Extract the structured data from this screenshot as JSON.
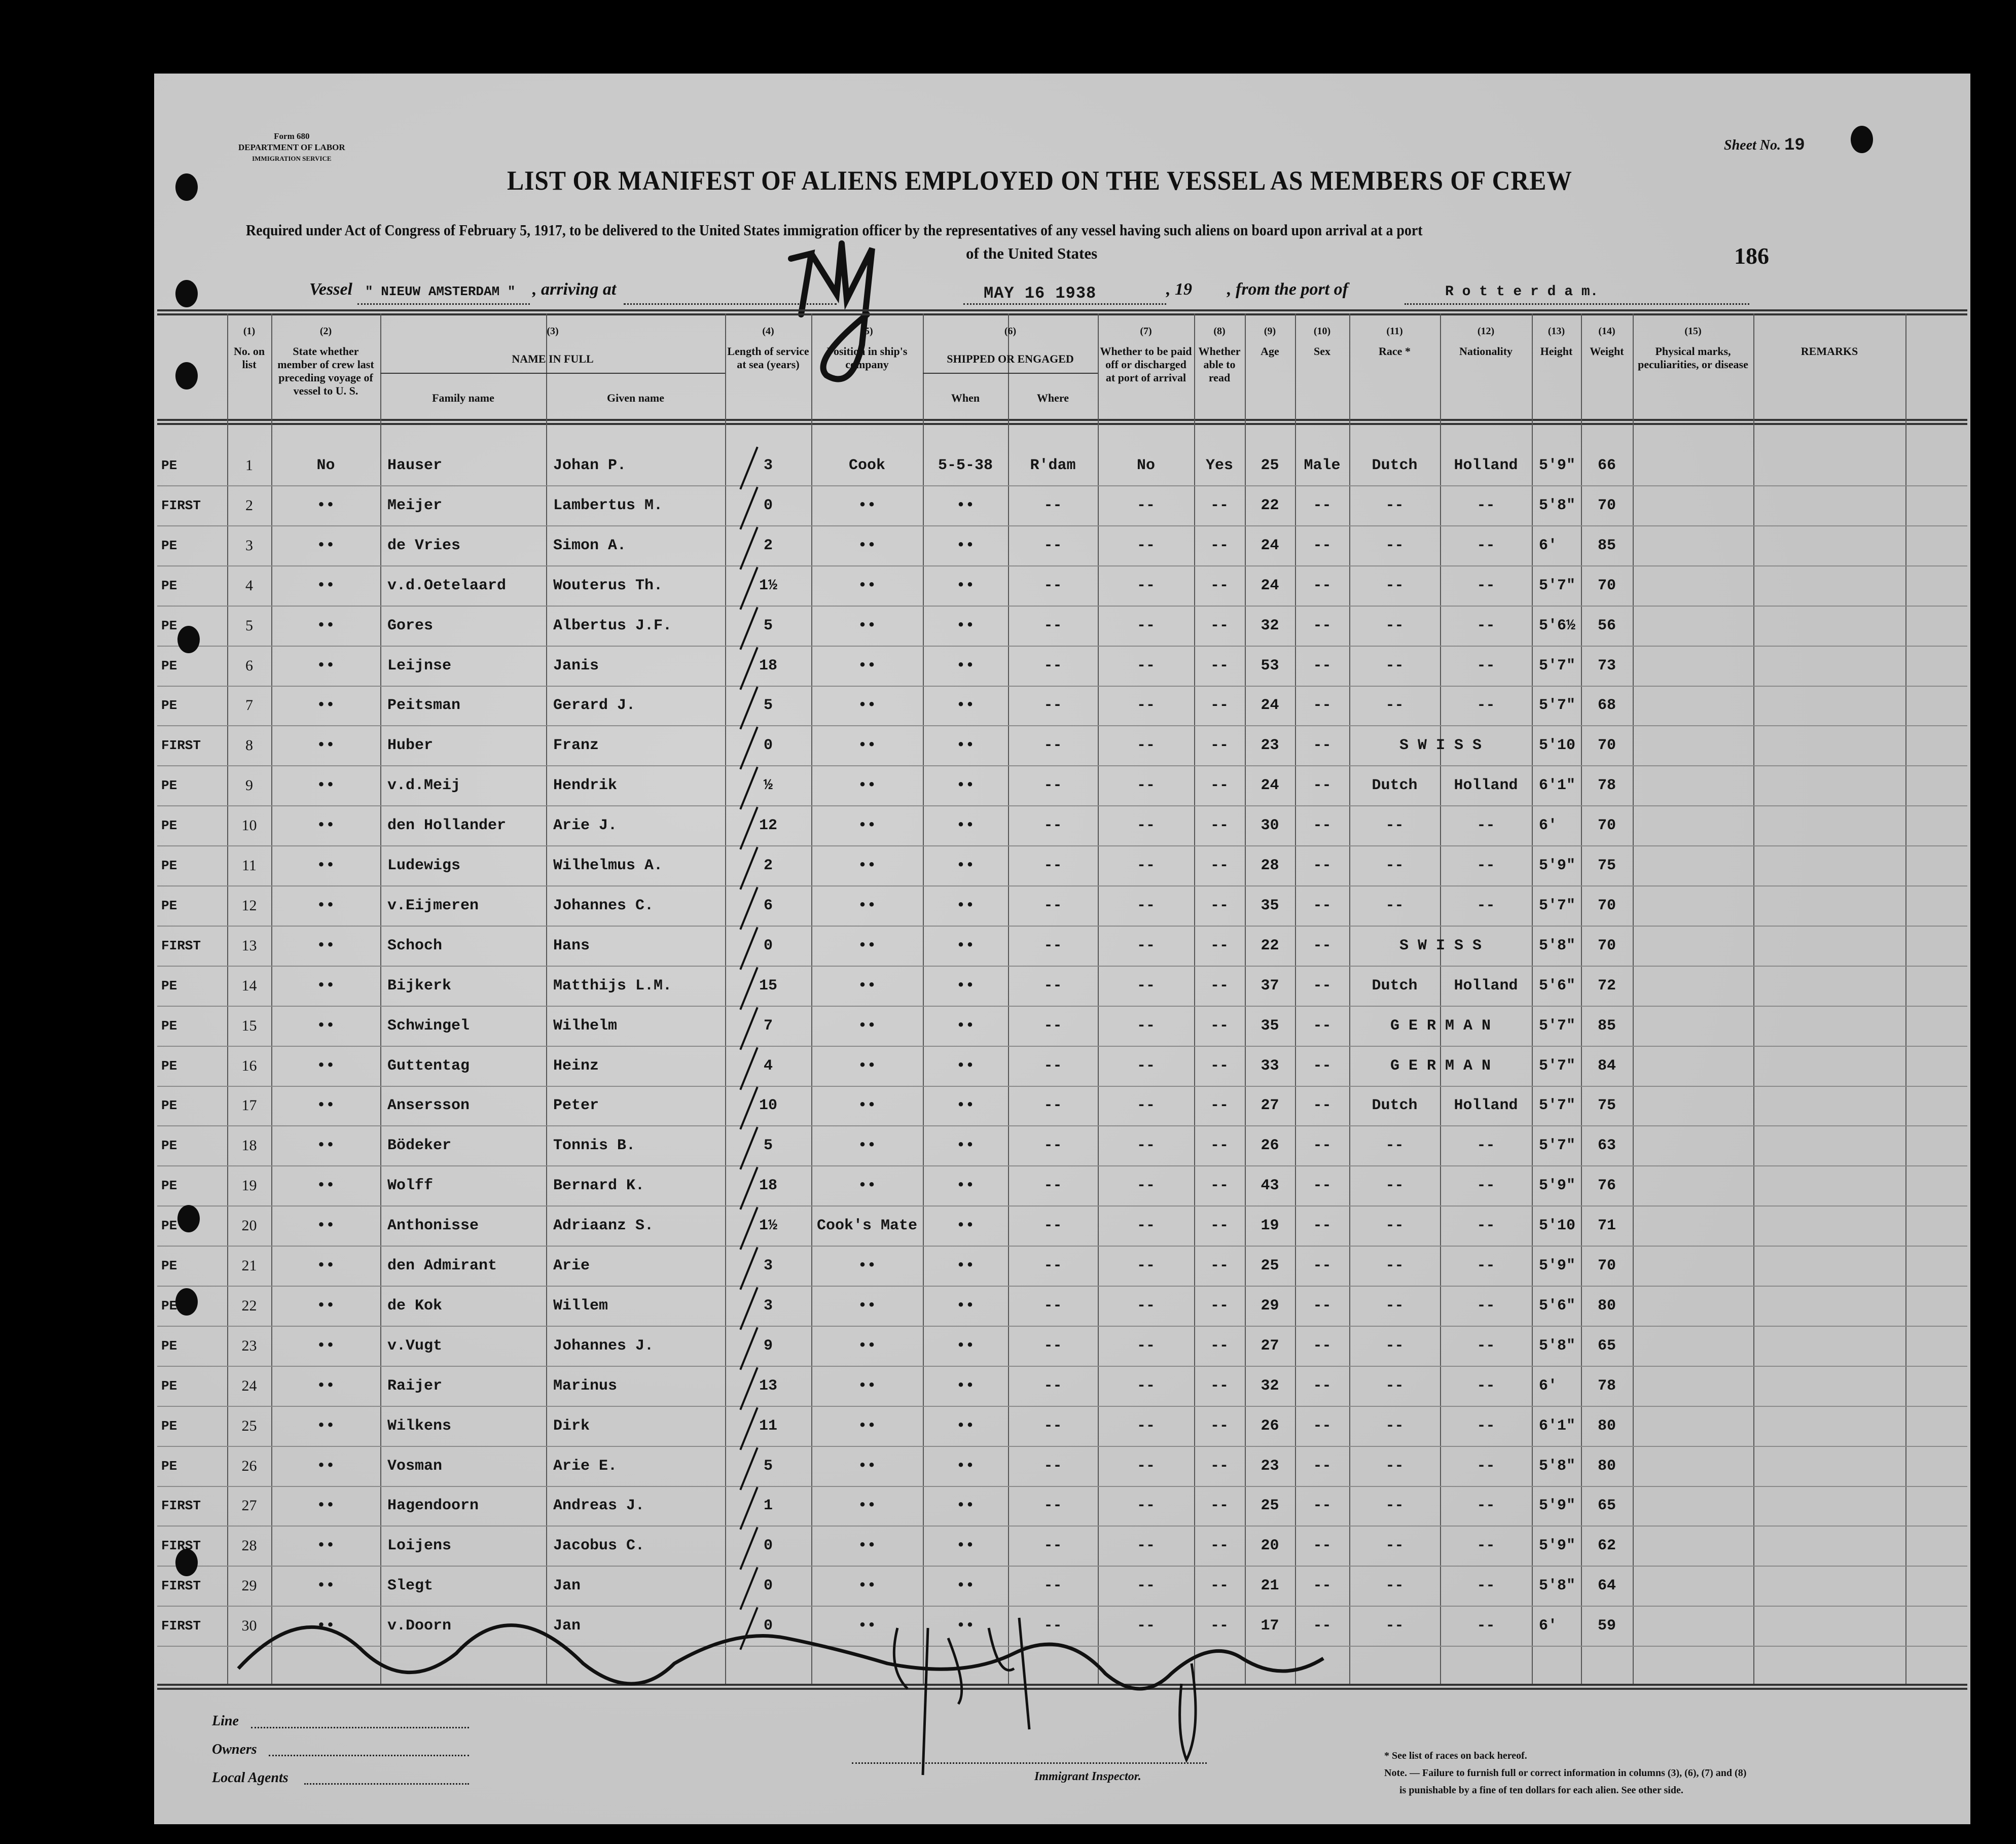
{
  "form_stamp": {
    "form": "Form 680",
    "department": "DEPARTMENT OF LABOR",
    "service": "IMMIGRATION SERVICE"
  },
  "sheet": {
    "label": "Sheet No.",
    "number": "19"
  },
  "stamp_number": "186",
  "title": "LIST OR MANIFEST OF ALIENS EMPLOYED ON THE VESSEL AS MEMBERS OF CREW",
  "subtitle_line1": "Required under Act of Congress of February 5, 1917, to be delivered to the United States immigration officer by the representatives of any vessel having such aliens on board upon arrival at a port",
  "subtitle_line2": "of the United States",
  "vessel_line": {
    "vessel_label": "Vessel",
    "vessel_name": "\" NIEUW AMSTERDAM \"",
    "arriving_label": ", arriving at",
    "arrival_port_handwritten": "NY",
    "date_stamp": "MAY 16 1938",
    "year_label": ", 19",
    "from_label": ", from the port of",
    "from_port": "R o t t e r d a m."
  },
  "columns": [
    {
      "num": "(1)",
      "label": "No. on list"
    },
    {
      "num": "(2)",
      "label": "State whether member of crew last preceding voyage of vessel to U. S."
    },
    {
      "num": "(3)",
      "label": "NAME IN FULL",
      "sub": [
        "Family name",
        "Given name"
      ]
    },
    {
      "num": "(4)",
      "label": "Length of service at sea (years)"
    },
    {
      "num": "(5)",
      "label": "Position in ship's company"
    },
    {
      "num": "(6)",
      "label": "SHIPPED OR ENGAGED",
      "sub": [
        "When",
        "Where"
      ]
    },
    {
      "num": "(7)",
      "label": "Whether to be paid off or discharged at port of arrival"
    },
    {
      "num": "(8)",
      "label": "Whether able to read"
    },
    {
      "num": "(9)",
      "label": "Age"
    },
    {
      "num": "(10)",
      "label": "Sex"
    },
    {
      "num": "(11)",
      "label": "Race *"
    },
    {
      "num": "(12)",
      "label": "Nationality"
    },
    {
      "num": "(13)",
      "label": "Height"
    },
    {
      "num": "(14)",
      "label": "Weight"
    },
    {
      "num": "(15)",
      "label": "Physical marks, peculiarities, or disease"
    },
    {
      "num": "",
      "label": "REMARKS"
    }
  ],
  "rows": [
    {
      "mark": "PE",
      "no": "1",
      "state": "No",
      "family": "Hauser",
      "given": "Johan P.",
      "length": "3",
      "position": "Cook",
      "when": "5-5-38",
      "where": "R'dam",
      "paid": "No",
      "read": "Yes",
      "age": "25",
      "sex": "Male",
      "race": "Dutch",
      "nationality": "Holland",
      "height": "5'9\"",
      "weight": "66"
    },
    {
      "mark": "FIRST",
      "no": "2",
      "state": "••",
      "family": "Meijer",
      "given": "Lambertus M.",
      "length": "0",
      "position": "••",
      "when": "••",
      "where": "--",
      "paid": "--",
      "read": "--",
      "age": "22",
      "sex": "--",
      "race": "--",
      "nationality": "--",
      "height": "5'8\"",
      "weight": "70"
    },
    {
      "mark": "PE",
      "no": "3",
      "state": "••",
      "family": "de Vries",
      "given": "Simon A.",
      "length": "2",
      "position": "••",
      "when": "••",
      "where": "--",
      "paid": "--",
      "read": "--",
      "age": "24",
      "sex": "--",
      "race": "--",
      "nationality": "--",
      "height": "6'",
      "weight": "85"
    },
    {
      "mark": "PE",
      "no": "4",
      "state": "••",
      "family": "v.d.Oetelaard",
      "given": "Wouterus Th.",
      "length": "1½",
      "position": "••",
      "when": "••",
      "where": "--",
      "paid": "--",
      "read": "--",
      "age": "24",
      "sex": "--",
      "race": "--",
      "nationality": "--",
      "height": "5'7\"",
      "weight": "70"
    },
    {
      "mark": "PE",
      "no": "5",
      "state": "••",
      "family": "Gores",
      "given": "Albertus J.F.",
      "length": "5",
      "position": "••",
      "when": "••",
      "where": "--",
      "paid": "--",
      "read": "--",
      "age": "32",
      "sex": "--",
      "race": "--",
      "nationality": "--",
      "height": "5'6½",
      "weight": "56"
    },
    {
      "mark": "PE",
      "no": "6",
      "state": "••",
      "family": "Leijnse",
      "given": "Janis",
      "length": "18",
      "position": "••",
      "when": "••",
      "where": "--",
      "paid": "--",
      "read": "--",
      "age": "53",
      "sex": "--",
      "race": "--",
      "nationality": "--",
      "height": "5'7\"",
      "weight": "73"
    },
    {
      "mark": "PE",
      "no": "7",
      "state": "••",
      "family": "Peitsman",
      "given": "Gerard J.",
      "length": "5",
      "position": "••",
      "when": "••",
      "where": "--",
      "paid": "--",
      "read": "--",
      "age": "24",
      "sex": "--",
      "race": "--",
      "nationality": "--",
      "height": "5'7\"",
      "weight": "68"
    },
    {
      "mark": "FIRST",
      "no": "8",
      "state": "••",
      "family": "Huber",
      "given": "Franz",
      "length": "0",
      "position": "••",
      "when": "••",
      "where": "--",
      "paid": "--",
      "read": "--",
      "age": "23",
      "sex": "--",
      "race": "S W I S S",
      "nationality": null,
      "height": "5'10",
      "weight": "70"
    },
    {
      "mark": "PE",
      "no": "9",
      "state": "••",
      "family": "v.d.Meij",
      "given": "Hendrik",
      "length": "½",
      "position": "••",
      "when": "••",
      "where": "--",
      "paid": "--",
      "read": "--",
      "age": "24",
      "sex": "--",
      "race": "Dutch",
      "nationality": "Holland",
      "height": "6'1\"",
      "weight": "78"
    },
    {
      "mark": "PE",
      "no": "10",
      "state": "••",
      "family": "den Hollander",
      "given": "Arie J.",
      "length": "12",
      "position": "••",
      "when": "••",
      "where": "--",
      "paid": "--",
      "read": "--",
      "age": "30",
      "sex": "--",
      "race": "--",
      "nationality": "--",
      "height": "6'",
      "weight": "70"
    },
    {
      "mark": "PE",
      "no": "11",
      "state": "••",
      "family": "Ludewigs",
      "given": "Wilhelmus A.",
      "length": "2",
      "position": "••",
      "when": "••",
      "where": "--",
      "paid": "--",
      "read": "--",
      "age": "28",
      "sex": "--",
      "race": "--",
      "nationality": "--",
      "height": "5'9\"",
      "weight": "75"
    },
    {
      "mark": "PE",
      "no": "12",
      "state": "••",
      "family": "v.Eijmeren",
      "given": "Johannes C.",
      "length": "6",
      "position": "••",
      "when": "••",
      "where": "--",
      "paid": "--",
      "read": "--",
      "age": "35",
      "sex": "--",
      "race": "--",
      "nationality": "--",
      "height": "5'7\"",
      "weight": "70"
    },
    {
      "mark": "FIRST",
      "no": "13",
      "state": "••",
      "family": "Schoch",
      "given": "Hans",
      "length": "0",
      "position": "••",
      "when": "••",
      "where": "--",
      "paid": "--",
      "read": "--",
      "age": "22",
      "sex": "--",
      "race": "S W I S S",
      "nationality": null,
      "height": "5'8\"",
      "weight": "70"
    },
    {
      "mark": "PE",
      "no": "14",
      "state": "••",
      "family": "Bijkerk",
      "given": "Matthijs L.M.",
      "length": "15",
      "position": "••",
      "when": "••",
      "where": "--",
      "paid": "--",
      "read": "--",
      "age": "37",
      "sex": "--",
      "race": "Dutch",
      "nationality": "Holland",
      "height": "5'6\"",
      "weight": "72"
    },
    {
      "mark": "PE",
      "no": "15",
      "state": "••",
      "family": "Schwingel",
      "given": "Wilhelm",
      "length": "7",
      "position": "••",
      "when": "••",
      "where": "--",
      "paid": "--",
      "read": "--",
      "age": "35",
      "sex": "--",
      "race": "G E R M A N",
      "nationality": null,
      "height": "5'7\"",
      "weight": "85"
    },
    {
      "mark": "PE",
      "no": "16",
      "state": "••",
      "family": "Guttentag",
      "given": "Heinz",
      "length": "4",
      "position": "••",
      "when": "••",
      "where": "--",
      "paid": "--",
      "read": "--",
      "age": "33",
      "sex": "--",
      "race": "G E R M A N",
      "nationality": null,
      "height": "5'7\"",
      "weight": "84"
    },
    {
      "mark": "PE",
      "no": "17",
      "state": "••",
      "family": "Ansersson",
      "given": "Peter",
      "length": "10",
      "position": "••",
      "when": "••",
      "where": "--",
      "paid": "--",
      "read": "--",
      "age": "27",
      "sex": "--",
      "race": "Dutch",
      "nationality": "Holland",
      "height": "5'7\"",
      "weight": "75"
    },
    {
      "mark": "PE",
      "no": "18",
      "state": "••",
      "family": "Bödeker",
      "given": "Tonnis B.",
      "length": "5",
      "position": "••",
      "when": "••",
      "where": "--",
      "paid": "--",
      "read": "--",
      "age": "26",
      "sex": "--",
      "race": "--",
      "nationality": "--",
      "height": "5'7\"",
      "weight": "63"
    },
    {
      "mark": "PE",
      "no": "19",
      "state": "••",
      "family": "Wolff",
      "given": "Bernard K.",
      "length": "18",
      "position": "••",
      "when": "••",
      "where": "--",
      "paid": "--",
      "read": "--",
      "age": "43",
      "sex": "--",
      "race": "--",
      "nationality": "--",
      "height": "5'9\"",
      "weight": "76"
    },
    {
      "mark": "PE",
      "no": "20",
      "state": "••",
      "family": "Anthonisse",
      "given": "Adriaanz S.",
      "length": "1½",
      "position": "Cook's Mate",
      "when": "••",
      "where": "--",
      "paid": "--",
      "read": "--",
      "age": "19",
      "sex": "--",
      "race": "--",
      "nationality": "--",
      "height": "5'10",
      "weight": "71"
    },
    {
      "mark": "PE",
      "no": "21",
      "state": "••",
      "family": "den Admirant",
      "given": "Arie",
      "length": "3",
      "position": "••",
      "when": "••",
      "where": "--",
      "paid": "--",
      "read": "--",
      "age": "25",
      "sex": "--",
      "race": "--",
      "nationality": "--",
      "height": "5'9\"",
      "weight": "70"
    },
    {
      "mark": "PE",
      "no": "22",
      "state": "••",
      "family": "de Kok",
      "given": "Willem",
      "length": "3",
      "position": "••",
      "when": "••",
      "where": "--",
      "paid": "--",
      "read": "--",
      "age": "29",
      "sex": "--",
      "race": "--",
      "nationality": "--",
      "height": "5'6\"",
      "weight": "80"
    },
    {
      "mark": "PE",
      "no": "23",
      "state": "••",
      "family": "v.Vugt",
      "given": "Johannes J.",
      "length": "9",
      "position": "••",
      "when": "••",
      "where": "--",
      "paid": "--",
      "read": "--",
      "age": "27",
      "sex": "--",
      "race": "--",
      "nationality": "--",
      "height": "5'8\"",
      "weight": "65"
    },
    {
      "mark": "PE",
      "no": "24",
      "state": "••",
      "family": "Raijer",
      "given": "Marinus",
      "length": "13",
      "position": "••",
      "when": "••",
      "where": "--",
      "paid": "--",
      "read": "--",
      "age": "32",
      "sex": "--",
      "race": "--",
      "nationality": "--",
      "height": "6'",
      "weight": "78"
    },
    {
      "mark": "PE",
      "no": "25",
      "state": "••",
      "family": "Wilkens",
      "given": "Dirk",
      "length": "11",
      "position": "••",
      "when": "••",
      "where": "--",
      "paid": "--",
      "read": "--",
      "age": "26",
      "sex": "--",
      "race": "--",
      "nationality": "--",
      "height": "6'1\"",
      "weight": "80"
    },
    {
      "mark": "PE",
      "no": "26",
      "state": "••",
      "family": "Vosman",
      "given": "Arie E.",
      "length": "5",
      "position": "••",
      "when": "••",
      "where": "--",
      "paid": "--",
      "read": "--",
      "age": "23",
      "sex": "--",
      "race": "--",
      "nationality": "--",
      "height": "5'8\"",
      "weight": "80"
    },
    {
      "mark": "FIRST",
      "no": "27",
      "state": "••",
      "family": "Hagendoorn",
      "given": "Andreas J.",
      "length": "1",
      "position": "••",
      "when": "••",
      "where": "--",
      "paid": "--",
      "read": "--",
      "age": "25",
      "sex": "--",
      "race": "--",
      "nationality": "--",
      "height": "5'9\"",
      "weight": "65"
    },
    {
      "mark": "FIRST",
      "no": "28",
      "state": "••",
      "family": "Loijens",
      "given": "Jacobus C.",
      "length": "0",
      "position": "••",
      "when": "••",
      "where": "--",
      "paid": "--",
      "read": "--",
      "age": "20",
      "sex": "--",
      "race": "--",
      "nationality": "--",
      "height": "5'9\"",
      "weight": "62"
    },
    {
      "mark": "FIRST",
      "no": "29",
      "state": "••",
      "family": "Slegt",
      "given": "Jan",
      "length": "0",
      "position": "••",
      "when": "••",
      "where": "--",
      "paid": "--",
      "read": "--",
      "age": "21",
      "sex": "--",
      "race": "--",
      "nationality": "--",
      "height": "5'8\"",
      "weight": "64"
    },
    {
      "mark": "FIRST",
      "no": "30",
      "state": "••",
      "family": "v.Doorn",
      "given": "Jan",
      "length": "0",
      "position": "••",
      "when": "••",
      "where": "--",
      "paid": "--",
      "read": "--",
      "age": "17",
      "sex": "--",
      "race": "--",
      "nationality": "--",
      "height": "6'",
      "weight": "59"
    }
  ],
  "footer": {
    "line_label": "Line",
    "owners_label": "Owners",
    "agents_label": "Local Agents",
    "inspector_label": "Immigrant Inspector.",
    "note_races": "* See list of races on back hereof.",
    "note_penalty_1": "Note. — Failure to furnish full or correct information in columns (3), (6), (7) and (8)",
    "note_penalty_2": "is punishable by a fine of ten dollars for each alien. See other side."
  }
}
